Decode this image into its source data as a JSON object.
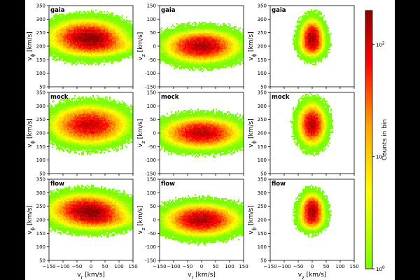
{
  "chart_data": {
    "type": "heatmap",
    "rows": [
      {
        "label": "gaia",
        "panels": [
          {
            "x": "v_r",
            "y": "v_phi",
            "clusters": [
              {
                "cx": -20,
                "cy": 235,
                "sx": 45,
                "sy": 22,
                "peak": 120
              },
              {
                "cx": 10,
                "cy": 228,
                "sx": 35,
                "sy": 18,
                "peak": 100
              },
              {
                "cx": 20,
                "cy": 205,
                "sx": 50,
                "sy": 15,
                "peak": 40
              }
            ]
          },
          {
            "x": "v_r",
            "y": "v_z",
            "clusters": [
              {
                "cx": 0,
                "cy": 0,
                "sx": 45,
                "sy": 20,
                "peak": 150
              }
            ]
          },
          {
            "x": "v_z",
            "y": "v_phi",
            "clusters": [
              {
                "cx": 0,
                "cy": 235,
                "sx": 14,
                "sy": 22,
                "peak": 150
              },
              {
                "cx": 0,
                "cy": 205,
                "sx": 16,
                "sy": 15,
                "peak": 60
              }
            ]
          }
        ]
      },
      {
        "label": "mock",
        "panels": [
          {
            "x": "v_r",
            "y": "v_phi",
            "clusters": [
              {
                "cx": -5,
                "cy": 230,
                "sx": 48,
                "sy": 25,
                "peak": 110
              }
            ]
          },
          {
            "x": "v_r",
            "y": "v_z",
            "clusters": [
              {
                "cx": 0,
                "cy": 0,
                "sx": 48,
                "sy": 20,
                "peak": 130
              }
            ]
          },
          {
            "x": "v_z",
            "y": "v_phi",
            "clusters": [
              {
                "cx": 0,
                "cy": 232,
                "sx": 17,
                "sy": 26,
                "peak": 140
              }
            ]
          }
        ]
      },
      {
        "label": "flow",
        "panels": [
          {
            "x": "v_r",
            "y": "v_phi",
            "clusters": [
              {
                "cx": -20,
                "cy": 238,
                "sx": 45,
                "sy": 20,
                "peak": 120
              },
              {
                "cx": 10,
                "cy": 226,
                "sx": 35,
                "sy": 18,
                "peak": 100
              },
              {
                "cx": 20,
                "cy": 205,
                "sx": 50,
                "sy": 15,
                "peak": 45
              }
            ]
          },
          {
            "x": "v_r",
            "y": "v_z",
            "clusters": [
              {
                "cx": 0,
                "cy": 0,
                "sx": 45,
                "sy": 20,
                "peak": 150
              }
            ]
          },
          {
            "x": "v_z",
            "y": "v_phi",
            "clusters": [
              {
                "cx": 0,
                "cy": 238,
                "sx": 14,
                "sy": 20,
                "peak": 150
              },
              {
                "cx": 0,
                "cy": 205,
                "sx": 16,
                "sy": 15,
                "peak": 60
              }
            ]
          }
        ]
      }
    ],
    "axes": {
      "v_r": {
        "label": "v_r [km/s]",
        "range": [
          -150,
          150
        ],
        "ticks": [
          -150,
          -100,
          -50,
          0,
          50,
          100,
          150
        ]
      },
      "v_z": {
        "label": "v_z [km/s]",
        "range": [
          -150,
          150
        ],
        "ticks": [
          -150,
          -100,
          -50,
          0,
          50,
          100,
          150
        ]
      },
      "v_phi": {
        "label": "v_ϕ [km/s]",
        "range": [
          50,
          350
        ],
        "ticks": [
          50,
          100,
          150,
          200,
          250,
          300,
          350
        ]
      }
    },
    "colorbar": {
      "label": "Counts in bin",
      "scale": "log",
      "range": [
        1,
        200
      ],
      "ticks": [
        {
          "base": "10",
          "exp": "0",
          "value": 1
        },
        {
          "base": "10",
          "exp": "1",
          "value": 10
        },
        {
          "base": "10",
          "exp": "2",
          "value": 100
        }
      ],
      "colormap": [
        "#7CFC00",
        "#FFFF00",
        "#FFA500",
        "#FF0000",
        "#8B0000"
      ]
    }
  }
}
